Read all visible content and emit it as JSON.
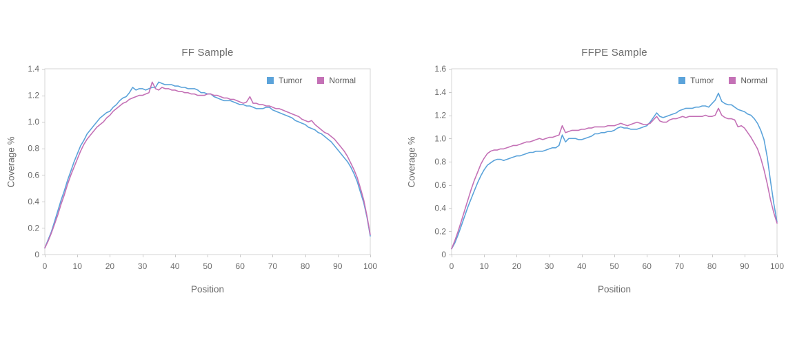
{
  "page": {
    "background": "#ffffff",
    "text_color": "#6b6b6b",
    "axis_frame_color": "#d6d6d6",
    "tick_mark_color": "#c9c9c9"
  },
  "chart_data": [
    {
      "type": "line",
      "title": "FF Sample",
      "xlabel": "Position",
      "ylabel": "Coverage %",
      "xlim": [
        0,
        100
      ],
      "ylim": [
        0,
        1.4
      ],
      "x_ticks": [
        0,
        10,
        20,
        30,
        40,
        50,
        60,
        70,
        80,
        90,
        100
      ],
      "y_ticks": [
        0,
        0.2,
        0.4,
        0.6,
        0.8,
        1.0,
        1.2,
        1.4
      ],
      "grid": false,
      "legend_position": "top-right-inside",
      "x_values": "index 0..100 step 1",
      "series": [
        {
          "name": "Tumor",
          "color": "#5BA3DA",
          "values": [
            0.05,
            0.11,
            0.17,
            0.25,
            0.33,
            0.41,
            0.48,
            0.56,
            0.63,
            0.7,
            0.76,
            0.82,
            0.86,
            0.91,
            0.94,
            0.97,
            1.0,
            1.03,
            1.05,
            1.07,
            1.08,
            1.11,
            1.13,
            1.16,
            1.18,
            1.19,
            1.22,
            1.26,
            1.24,
            1.25,
            1.25,
            1.24,
            1.25,
            1.26,
            1.26,
            1.3,
            1.29,
            1.28,
            1.28,
            1.28,
            1.27,
            1.27,
            1.26,
            1.26,
            1.25,
            1.25,
            1.25,
            1.24,
            1.22,
            1.22,
            1.21,
            1.21,
            1.19,
            1.18,
            1.17,
            1.16,
            1.16,
            1.16,
            1.15,
            1.14,
            1.13,
            1.13,
            1.12,
            1.12,
            1.11,
            1.1,
            1.1,
            1.1,
            1.11,
            1.11,
            1.09,
            1.08,
            1.07,
            1.06,
            1.05,
            1.04,
            1.03,
            1.01,
            1.0,
            0.99,
            0.98,
            0.96,
            0.95,
            0.94,
            0.92,
            0.91,
            0.89,
            0.87,
            0.85,
            0.82,
            0.79,
            0.76,
            0.73,
            0.7,
            0.66,
            0.61,
            0.55,
            0.47,
            0.39,
            0.28,
            0.14
          ]
        },
        {
          "name": "Normal",
          "color": "#C471B6",
          "values": [
            0.05,
            0.1,
            0.16,
            0.23,
            0.3,
            0.38,
            0.45,
            0.53,
            0.6,
            0.66,
            0.72,
            0.78,
            0.83,
            0.87,
            0.9,
            0.93,
            0.96,
            0.98,
            1.0,
            1.03,
            1.05,
            1.08,
            1.1,
            1.12,
            1.14,
            1.15,
            1.17,
            1.18,
            1.19,
            1.2,
            1.2,
            1.21,
            1.22,
            1.3,
            1.25,
            1.24,
            1.26,
            1.25,
            1.25,
            1.24,
            1.24,
            1.23,
            1.23,
            1.22,
            1.22,
            1.21,
            1.21,
            1.2,
            1.2,
            1.2,
            1.21,
            1.21,
            1.2,
            1.2,
            1.19,
            1.18,
            1.18,
            1.17,
            1.17,
            1.16,
            1.15,
            1.14,
            1.15,
            1.19,
            1.14,
            1.14,
            1.13,
            1.13,
            1.12,
            1.12,
            1.11,
            1.1,
            1.1,
            1.09,
            1.08,
            1.07,
            1.06,
            1.05,
            1.04,
            1.02,
            1.01,
            1.0,
            1.01,
            0.98,
            0.96,
            0.94,
            0.92,
            0.91,
            0.89,
            0.87,
            0.84,
            0.81,
            0.78,
            0.74,
            0.69,
            0.64,
            0.58,
            0.5,
            0.41,
            0.29,
            0.15
          ]
        }
      ]
    },
    {
      "type": "line",
      "title": "FFPE Sample",
      "xlabel": "Position",
      "ylabel": "Coverage %",
      "xlim": [
        0,
        100
      ],
      "ylim": [
        0,
        1.6
      ],
      "x_ticks": [
        0,
        10,
        20,
        30,
        40,
        50,
        60,
        70,
        80,
        90,
        100
      ],
      "y_ticks": [
        0,
        0.2,
        0.4,
        0.6,
        0.8,
        1.0,
        1.2,
        1.4,
        1.6
      ],
      "grid": false,
      "legend_position": "top-right-inside",
      "x_values": "index 0..100 step 1",
      "series": [
        {
          "name": "Tumor",
          "color": "#5BA3DA",
          "values": [
            0.05,
            0.1,
            0.17,
            0.25,
            0.33,
            0.41,
            0.48,
            0.55,
            0.62,
            0.68,
            0.73,
            0.77,
            0.79,
            0.81,
            0.82,
            0.82,
            0.81,
            0.82,
            0.83,
            0.84,
            0.85,
            0.85,
            0.86,
            0.87,
            0.88,
            0.88,
            0.89,
            0.89,
            0.89,
            0.9,
            0.91,
            0.92,
            0.92,
            0.94,
            1.03,
            0.97,
            1.0,
            1.0,
            1.0,
            0.99,
            0.99,
            1.0,
            1.01,
            1.02,
            1.04,
            1.04,
            1.05,
            1.05,
            1.06,
            1.06,
            1.07,
            1.09,
            1.1,
            1.09,
            1.09,
            1.08,
            1.08,
            1.08,
            1.09,
            1.1,
            1.11,
            1.14,
            1.18,
            1.22,
            1.19,
            1.18,
            1.19,
            1.2,
            1.21,
            1.22,
            1.24,
            1.25,
            1.26,
            1.26,
            1.26,
            1.27,
            1.27,
            1.28,
            1.28,
            1.27,
            1.3,
            1.33,
            1.39,
            1.32,
            1.3,
            1.29,
            1.29,
            1.27,
            1.25,
            1.24,
            1.23,
            1.21,
            1.2,
            1.17,
            1.13,
            1.07,
            0.99,
            0.84,
            0.63,
            0.44,
            0.28
          ]
        },
        {
          "name": "Normal",
          "color": "#C471B6",
          "values": [
            0.05,
            0.12,
            0.2,
            0.29,
            0.38,
            0.47,
            0.56,
            0.64,
            0.71,
            0.78,
            0.83,
            0.87,
            0.89,
            0.9,
            0.9,
            0.91,
            0.91,
            0.92,
            0.93,
            0.94,
            0.94,
            0.95,
            0.96,
            0.97,
            0.97,
            0.98,
            0.99,
            1.0,
            0.99,
            1.0,
            1.01,
            1.01,
            1.02,
            1.03,
            1.11,
            1.05,
            1.06,
            1.07,
            1.07,
            1.07,
            1.08,
            1.08,
            1.09,
            1.09,
            1.1,
            1.1,
            1.1,
            1.1,
            1.11,
            1.11,
            1.11,
            1.12,
            1.13,
            1.12,
            1.11,
            1.12,
            1.13,
            1.14,
            1.13,
            1.12,
            1.12,
            1.13,
            1.16,
            1.19,
            1.15,
            1.14,
            1.14,
            1.16,
            1.17,
            1.17,
            1.18,
            1.19,
            1.18,
            1.19,
            1.19,
            1.19,
            1.19,
            1.19,
            1.2,
            1.19,
            1.19,
            1.2,
            1.26,
            1.2,
            1.18,
            1.17,
            1.17,
            1.16,
            1.1,
            1.11,
            1.09,
            1.05,
            1.01,
            0.96,
            0.91,
            0.83,
            0.73,
            0.61,
            0.47,
            0.36,
            0.27
          ]
        }
      ]
    }
  ]
}
